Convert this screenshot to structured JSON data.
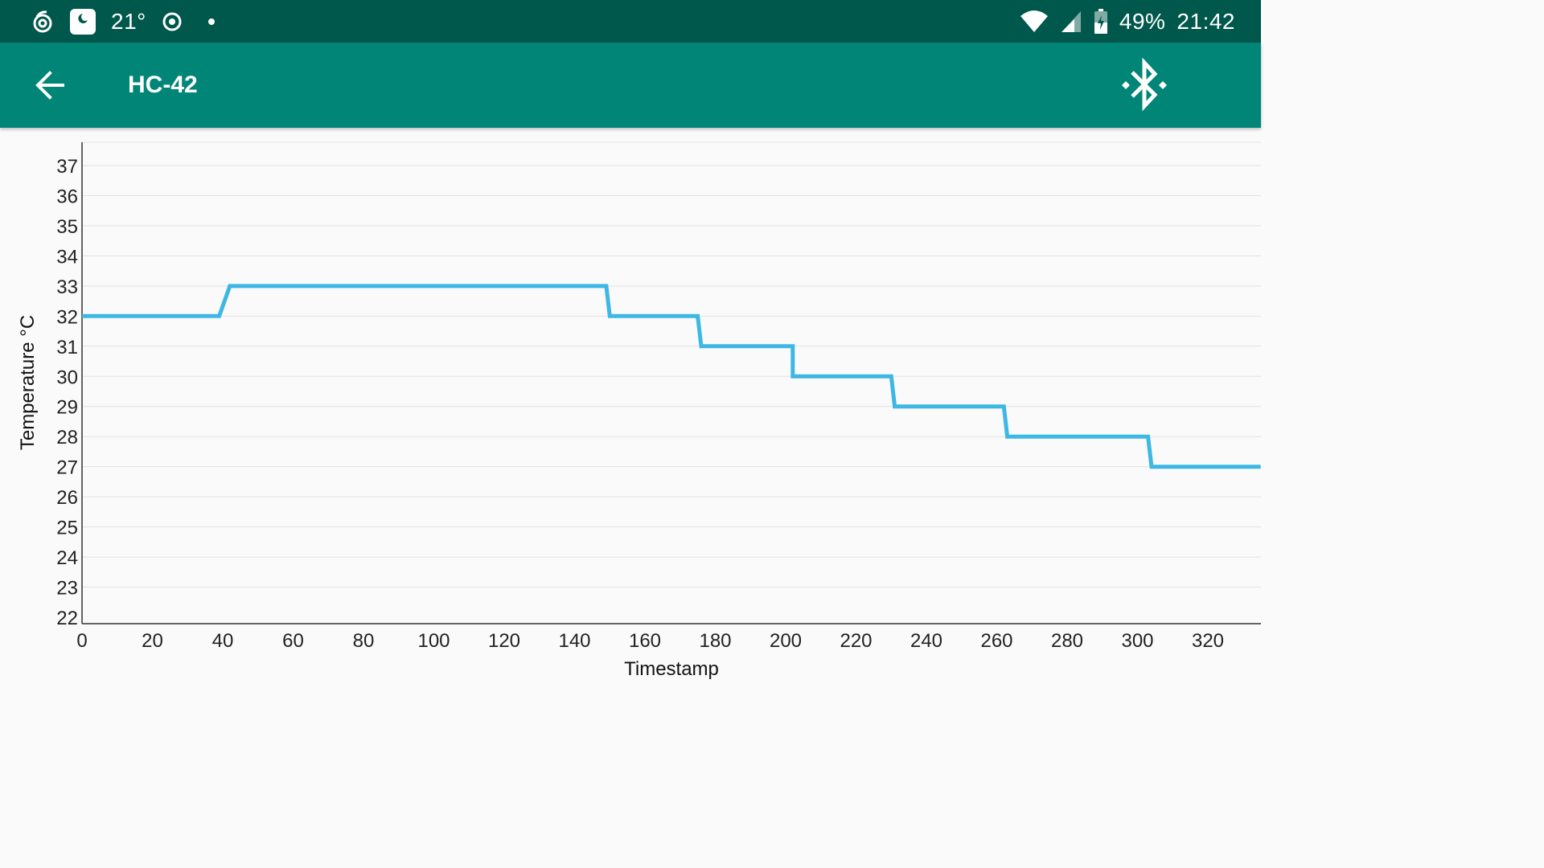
{
  "status_bar": {
    "temperature": "21°",
    "battery": "49%",
    "time": "21:42",
    "icons": [
      "notification-swirl-icon",
      "night-mode-icon",
      "location-target-icon",
      "dot-icon",
      "wifi-icon",
      "cell-signal-icon",
      "battery-charging-icon"
    ]
  },
  "app_bar": {
    "title": "HC-42",
    "back_icon": "arrow-back-icon",
    "bluetooth_icon": "bluetooth-searching-icon",
    "color": "#008577",
    "status_color": "#00574b"
  },
  "chart_data": {
    "type": "line",
    "xlabel": "Timestamp",
    "ylabel": "Temperature °C",
    "xlim": [
      0,
      335
    ],
    "ylim": [
      22,
      38
    ],
    "x_ticks": [
      0,
      20,
      40,
      60,
      80,
      100,
      120,
      140,
      160,
      180,
      200,
      220,
      240,
      260,
      280,
      300,
      320
    ],
    "y_ticks": [
      22,
      23,
      24,
      25,
      26,
      27,
      28,
      29,
      30,
      31,
      32,
      33,
      34,
      35,
      36,
      37
    ],
    "grid": true,
    "line_color": "#3db7e4",
    "series": [
      {
        "x": [
          0,
          39,
          42,
          149,
          150,
          175,
          176,
          202,
          202,
          230,
          231,
          262,
          263,
          303,
          304,
          335
        ],
        "y": [
          32,
          32,
          33,
          33,
          32,
          32,
          31,
          31,
          30,
          30,
          29,
          29,
          28,
          28,
          27,
          27
        ]
      }
    ]
  }
}
